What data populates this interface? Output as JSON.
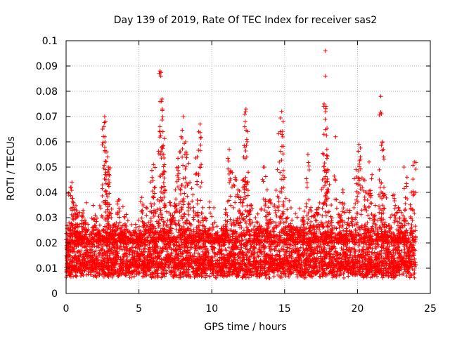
{
  "chart_data": {
    "type": "scatter",
    "title": "Day 139 of 2019, Rate Of TEC Index for receiver sas2",
    "xlabel": "GPS time / hours",
    "ylabel": "ROTI / TECUs",
    "xlim": [
      0,
      25
    ],
    "ylim": [
      0,
      0.1
    ],
    "xticks": [
      "0",
      "5",
      "10",
      "15",
      "20",
      "25"
    ],
    "yticks": [
      "0",
      "0.01",
      "0.02",
      "0.03",
      "0.04",
      "0.05",
      "0.06",
      "0.07",
      "0.08",
      "0.09",
      "0.1"
    ],
    "grid": true,
    "marker": "+",
    "color": "#ff0000",
    "series": [
      {
        "points": [
          [
            0.1,
            0.015
          ],
          [
            0.2,
            0.028
          ],
          [
            0.3,
            0.042
          ],
          [
            0.4,
            0.044
          ],
          [
            0.5,
            0.036
          ],
          [
            0.7,
            0.033
          ],
          [
            0.9,
            0.024
          ],
          [
            1.1,
            0.031
          ],
          [
            1.3,
            0.029
          ],
          [
            1.5,
            0.02
          ],
          [
            1.8,
            0.026
          ],
          [
            2.0,
            0.031
          ],
          [
            2.2,
            0.025
          ],
          [
            2.5,
            0.043
          ],
          [
            2.6,
            0.066
          ],
          [
            2.65,
            0.07
          ],
          [
            2.7,
            0.068
          ],
          [
            2.8,
            0.056
          ],
          [
            2.85,
            0.054
          ],
          [
            2.9,
            0.05
          ],
          [
            2.9,
            0.045
          ],
          [
            3.1,
            0.03
          ],
          [
            3.3,
            0.027
          ],
          [
            3.6,
            0.037
          ],
          [
            3.8,
            0.024
          ],
          [
            4.0,
            0.025
          ],
          [
            4.3,
            0.022
          ],
          [
            4.6,
            0.021
          ],
          [
            4.8,
            0.026
          ],
          [
            5.0,
            0.025
          ],
          [
            5.2,
            0.038
          ],
          [
            5.5,
            0.034
          ],
          [
            5.9,
            0.046
          ],
          [
            6.0,
            0.051
          ],
          [
            6.1,
            0.042
          ],
          [
            6.3,
            0.037
          ],
          [
            6.45,
            0.088
          ],
          [
            6.5,
            0.086
          ],
          [
            6.55,
            0.076
          ],
          [
            6.6,
            0.073
          ],
          [
            6.65,
            0.064
          ],
          [
            6.7,
            0.055
          ],
          [
            6.8,
            0.041
          ],
          [
            7.1,
            0.036
          ],
          [
            7.3,
            0.031
          ],
          [
            7.5,
            0.041
          ],
          [
            7.7,
            0.05
          ],
          [
            7.8,
            0.056
          ],
          [
            7.9,
            0.062
          ],
          [
            8.05,
            0.07
          ],
          [
            8.2,
            0.06
          ],
          [
            8.3,
            0.055
          ],
          [
            8.5,
            0.044
          ],
          [
            8.7,
            0.039
          ],
          [
            9.0,
            0.054
          ],
          [
            9.1,
            0.064
          ],
          [
            9.2,
            0.067
          ],
          [
            9.3,
            0.044
          ],
          [
            9.5,
            0.03
          ],
          [
            9.8,
            0.025
          ],
          [
            10.2,
            0.021
          ],
          [
            10.5,
            0.022
          ],
          [
            10.8,
            0.024
          ],
          [
            11.0,
            0.032
          ],
          [
            11.2,
            0.057
          ],
          [
            11.3,
            0.048
          ],
          [
            11.6,
            0.046
          ],
          [
            11.8,
            0.041
          ],
          [
            12.0,
            0.038
          ],
          [
            12.2,
            0.045
          ],
          [
            12.3,
            0.068
          ],
          [
            12.35,
            0.073
          ],
          [
            12.4,
            0.061
          ],
          [
            12.5,
            0.048
          ],
          [
            12.7,
            0.035
          ],
          [
            13.0,
            0.03
          ],
          [
            13.3,
            0.027
          ],
          [
            13.6,
            0.05
          ],
          [
            13.8,
            0.041
          ],
          [
            14.0,
            0.037
          ],
          [
            14.3,
            0.035
          ],
          [
            14.5,
            0.049
          ],
          [
            14.7,
            0.064
          ],
          [
            14.8,
            0.072
          ],
          [
            14.9,
            0.068
          ],
          [
            15.0,
            0.046
          ],
          [
            15.2,
            0.03
          ],
          [
            15.5,
            0.029
          ],
          [
            15.8,
            0.026
          ],
          [
            16.0,
            0.025
          ],
          [
            16.3,
            0.029
          ],
          [
            16.6,
            0.055
          ],
          [
            16.8,
            0.034
          ],
          [
            17.0,
            0.031
          ],
          [
            17.3,
            0.034
          ],
          [
            17.6,
            0.045
          ],
          [
            17.7,
            0.063
          ],
          [
            17.8,
            0.096
          ],
          [
            17.8,
            0.086
          ],
          [
            17.85,
            0.074
          ],
          [
            17.9,
            0.057
          ],
          [
            17.95,
            0.049
          ],
          [
            18.2,
            0.035
          ],
          [
            18.5,
            0.062
          ],
          [
            18.8,
            0.036
          ],
          [
            19.0,
            0.041
          ],
          [
            19.3,
            0.033
          ],
          [
            19.6,
            0.03
          ],
          [
            19.9,
            0.049
          ],
          [
            20.1,
            0.059
          ],
          [
            20.2,
            0.054
          ],
          [
            20.4,
            0.045
          ],
          [
            20.6,
            0.04
          ],
          [
            20.8,
            0.052
          ],
          [
            21.0,
            0.047
          ],
          [
            21.2,
            0.031
          ],
          [
            21.5,
            0.045
          ],
          [
            21.6,
            0.078
          ],
          [
            21.7,
            0.06
          ],
          [
            21.8,
            0.054
          ],
          [
            21.9,
            0.039
          ],
          [
            22.2,
            0.027
          ],
          [
            22.5,
            0.039
          ],
          [
            22.8,
            0.034
          ],
          [
            23.0,
            0.032
          ],
          [
            23.2,
            0.05
          ],
          [
            23.4,
            0.046
          ],
          [
            23.7,
            0.04
          ],
          [
            23.9,
            0.052
          ]
        ],
        "baseline_band": [
          0.005,
          0.025
        ],
        "note_density": "dense"
      }
    ]
  }
}
